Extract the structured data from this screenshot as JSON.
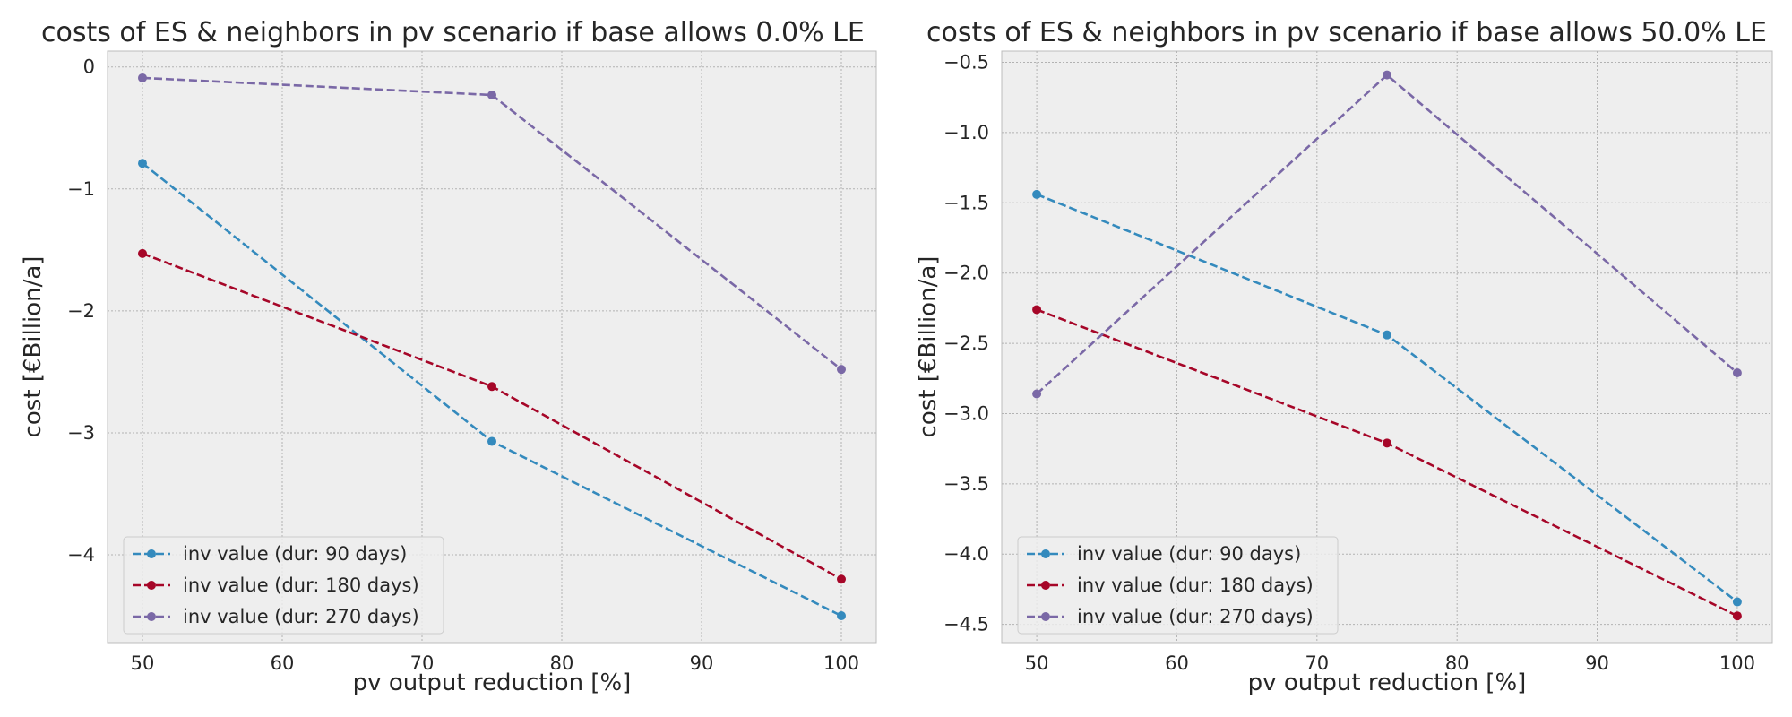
{
  "chart_data": [
    {
      "type": "line",
      "title": "costs of ES & neighbors in pv scenario if base allows 0.0% LE",
      "xlabel": "pv output reduction [%]",
      "ylabel": "cost [€Billion/a]",
      "x": [
        50,
        75,
        100
      ],
      "xlim": [
        47.5,
        102.5
      ],
      "ylim": [
        -4.72,
        0.13
      ],
      "xticks": [
        50,
        60,
        70,
        80,
        90,
        100
      ],
      "xtick_labels": [
        "50",
        "60",
        "70",
        "80",
        "90",
        "100"
      ],
      "yticks": [
        0,
        -1,
        -2,
        -3,
        -4
      ],
      "ytick_labels": [
        "0",
        "−1",
        "−2",
        "−3",
        "−4"
      ],
      "grid": true,
      "legend_position": "lower-left",
      "series": [
        {
          "name": "inv value (dur: 90 days)",
          "color": "#348ABD",
          "values": [
            -0.79,
            -3.07,
            -4.5
          ]
        },
        {
          "name": "inv value (dur: 180 days)",
          "color": "#A60628",
          "values": [
            -1.53,
            -2.62,
            -4.2
          ]
        },
        {
          "name": "inv value (dur: 270 days)",
          "color": "#7A68A6",
          "values": [
            -0.09,
            -0.23,
            -2.48
          ]
        }
      ]
    },
    {
      "type": "line",
      "title": "costs of ES & neighbors in pv scenario if base allows 50.0% LE",
      "xlabel": "pv output reduction [%]",
      "ylabel": "cost [€Billion/a]",
      "x": [
        50,
        75,
        100
      ],
      "xlim": [
        47.5,
        102.5
      ],
      "ylim": [
        -4.63,
        -0.42
      ],
      "xticks": [
        50,
        60,
        70,
        80,
        90,
        100
      ],
      "xtick_labels": [
        "50",
        "60",
        "70",
        "80",
        "90",
        "100"
      ],
      "yticks": [
        -0.5,
        -1.0,
        -1.5,
        -2.0,
        -2.5,
        -3.0,
        -3.5,
        -4.0,
        -4.5
      ],
      "ytick_labels": [
        "−0.5",
        "−1.0",
        "−1.5",
        "−2.0",
        "−2.5",
        "−3.0",
        "−3.5",
        "−4.0",
        "−4.5"
      ],
      "grid": true,
      "legend_position": "lower-left",
      "series": [
        {
          "name": "inv value (dur: 90 days)",
          "color": "#348ABD",
          "values": [
            -1.44,
            -2.44,
            -4.34
          ]
        },
        {
          "name": "inv value (dur: 180 days)",
          "color": "#A60628",
          "values": [
            -2.26,
            -3.21,
            -4.44
          ]
        },
        {
          "name": "inv value (dur: 270 days)",
          "color": "#7A68A6",
          "values": [
            -2.86,
            -0.59,
            -2.71
          ]
        }
      ]
    }
  ]
}
